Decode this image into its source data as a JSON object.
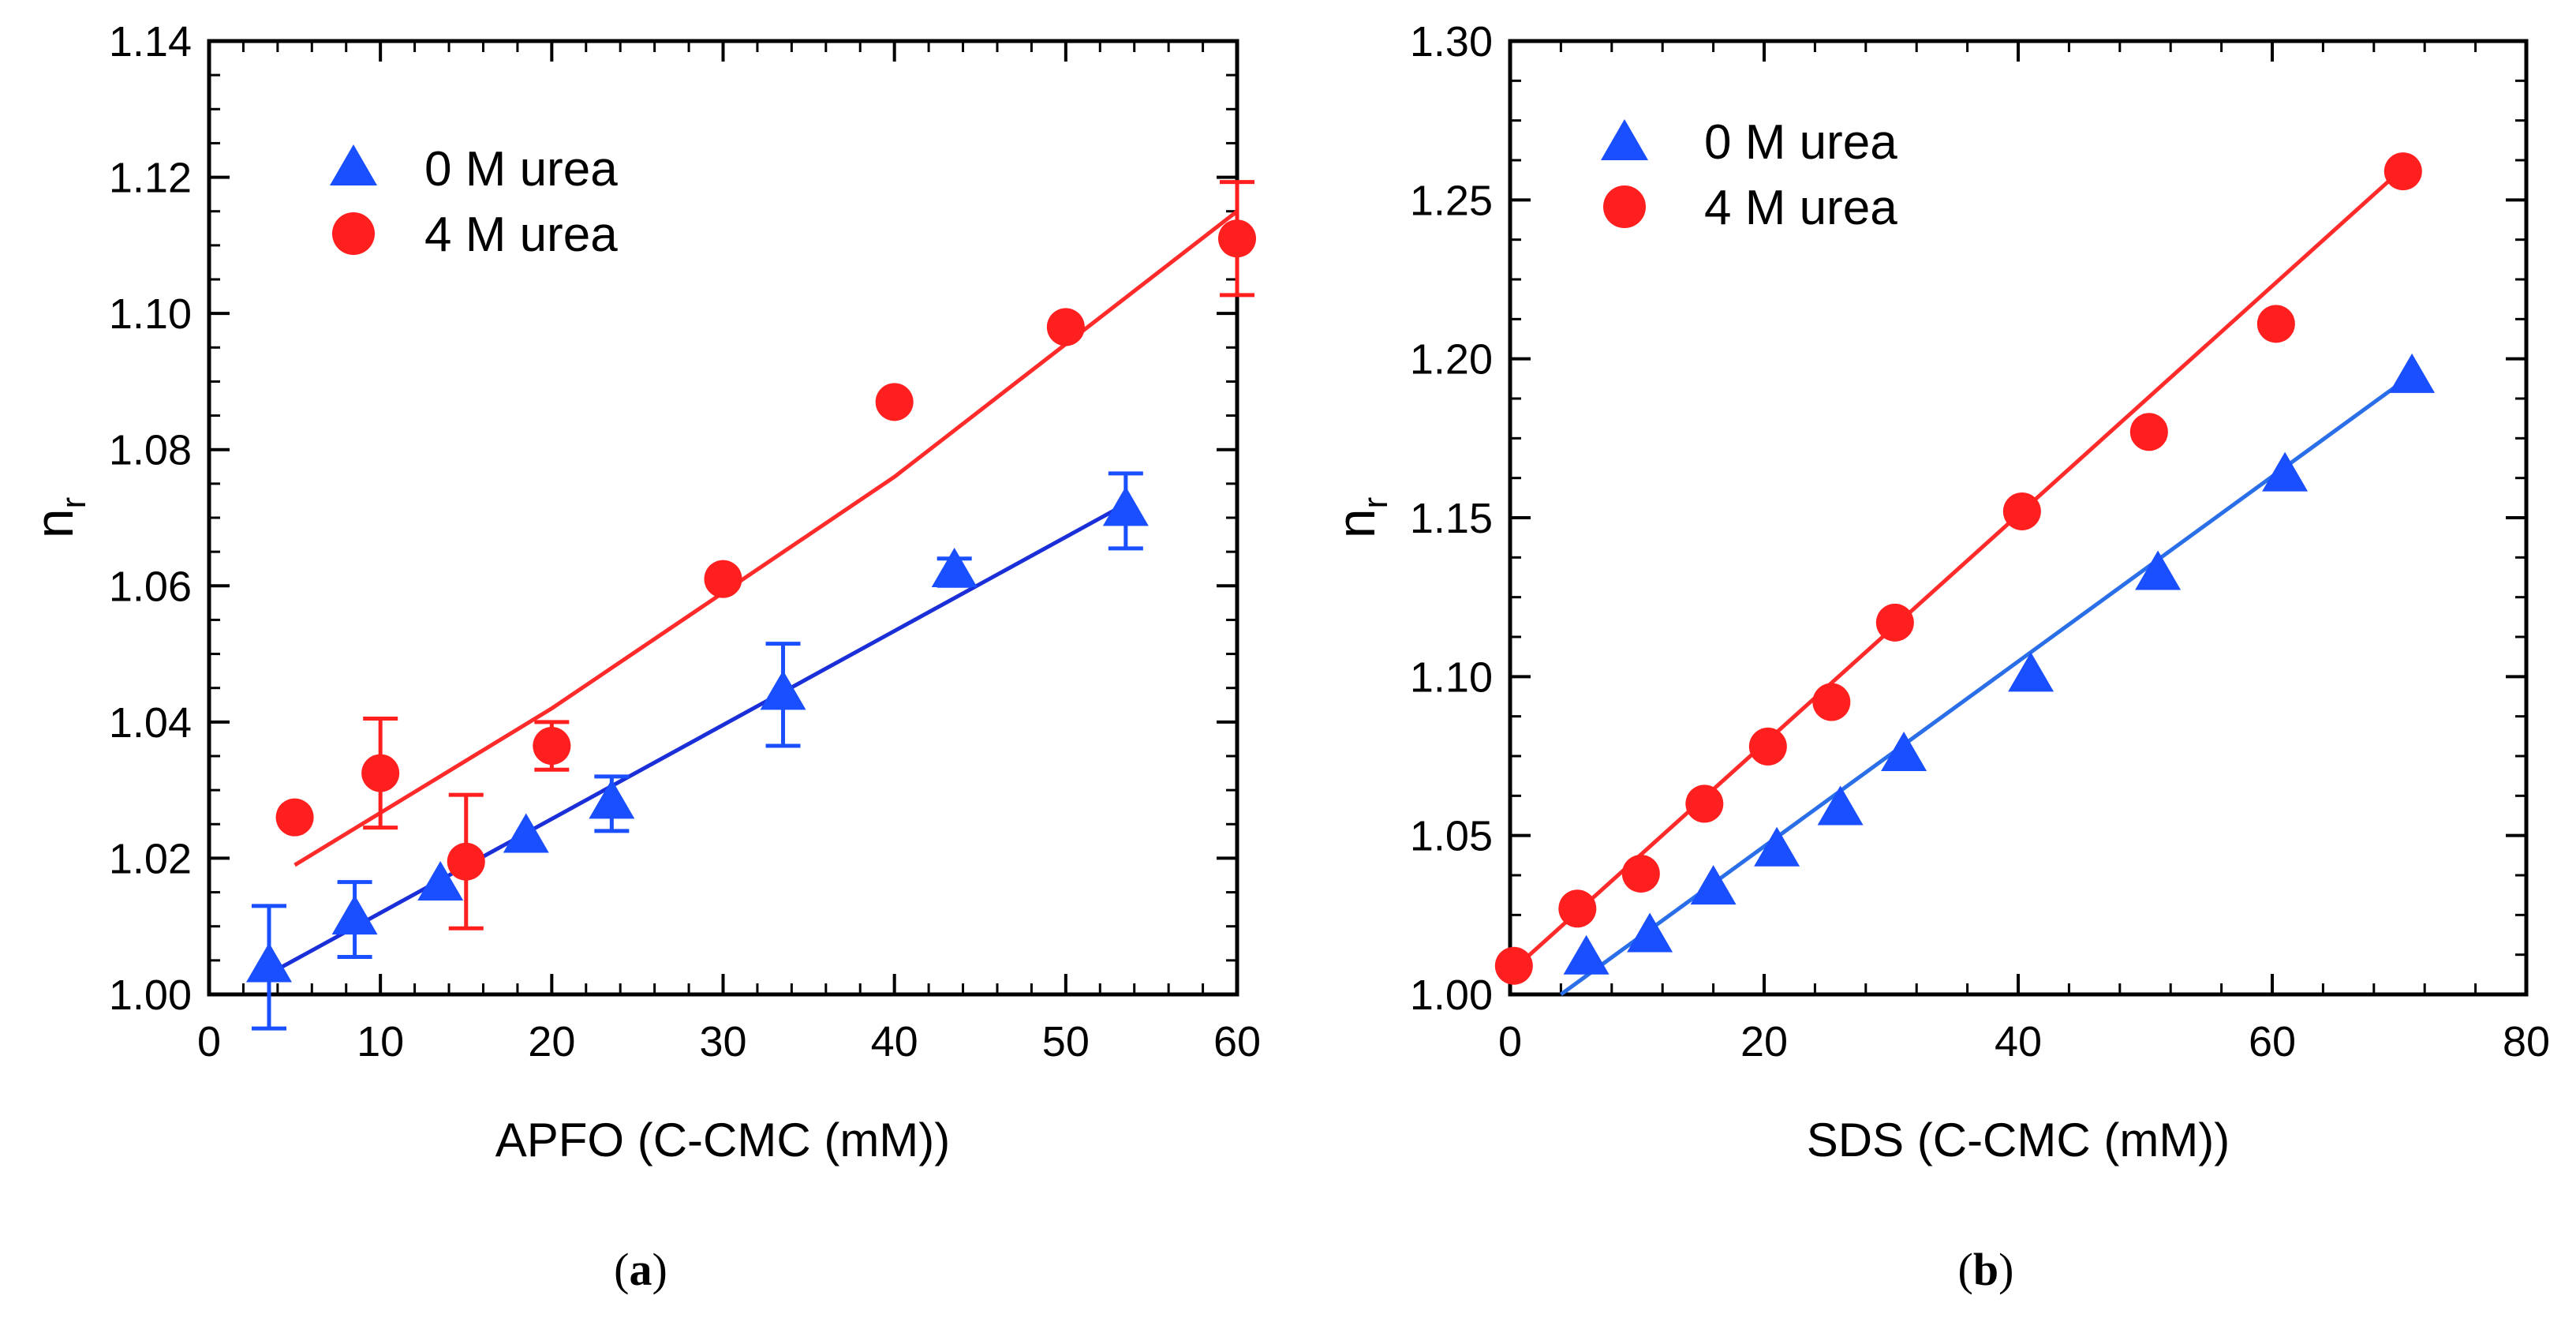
{
  "chart_data": [
    {
      "type": "scatter",
      "panel_label": "a",
      "xlabel": "APFO (C-CMC (mM))",
      "ylabel_main": "n",
      "ylabel_sub": "r",
      "xlim": [
        0,
        60
      ],
      "ylim": [
        1.0,
        1.14
      ],
      "xticks": [
        0,
        10,
        20,
        30,
        40,
        50,
        60
      ],
      "xtick_labels": [
        "0",
        "10",
        "20",
        "30",
        "40",
        "50",
        "60"
      ],
      "yticks": [
        1.0,
        1.02,
        1.04,
        1.06,
        1.08,
        1.1,
        1.12,
        1.14
      ],
      "ytick_labels": [
        "1.00",
        "1.02",
        "1.04",
        "1.06",
        "1.08",
        "1.10",
        "1.12",
        "1.14"
      ],
      "legend_position": "top-left",
      "series": [
        {
          "name": "0 M urea",
          "marker": "triangle",
          "color": "#1a4fff",
          "fit_color": "#1a2fd8",
          "x": [
            3.5,
            8.5,
            13.5,
            18.5,
            23.5,
            33.5,
            43.5,
            53.5
          ],
          "y": [
            1.004,
            1.011,
            1.016,
            1.023,
            1.028,
            1.044,
            1.062,
            1.071
          ],
          "err": [
            0.009,
            0.0055,
            0,
            0,
            0.004,
            0.0075,
            0.002,
            0.0055
          ],
          "fit_x": [
            3.5,
            53.5
          ],
          "fit_y": [
            1.003,
            1.072
          ]
        },
        {
          "name": "4 M urea",
          "marker": "circle",
          "color": "#ff1f1f",
          "fit_color": "#ff2a2a",
          "x": [
            5,
            10,
            15,
            20,
            30,
            40,
            50,
            60
          ],
          "y": [
            1.026,
            1.0325,
            1.0195,
            1.0365,
            1.061,
            1.087,
            1.098,
            1.111
          ],
          "err": [
            0,
            0.008,
            0.0098,
            0.0035,
            0,
            0,
            0,
            0.0083
          ],
          "fit_x": [
            5,
            20,
            40,
            60
          ],
          "fit_y": [
            1.019,
            1.042,
            1.076,
            1.115
          ]
        }
      ]
    },
    {
      "type": "scatter",
      "panel_label": "b",
      "xlabel": "SDS (C-CMC (mM))",
      "ylabel_main": "n",
      "ylabel_sub": "r",
      "xlim": [
        0,
        80
      ],
      "ylim": [
        1.0,
        1.3
      ],
      "xticks": [
        0,
        20,
        40,
        60,
        80
      ],
      "xtick_labels": [
        "0",
        "20",
        "40",
        "60",
        "80"
      ],
      "yticks": [
        1.0,
        1.05,
        1.1,
        1.15,
        1.2,
        1.25,
        1.3
      ],
      "ytick_labels": [
        "1.00",
        "1.05",
        "1.10",
        "1.15",
        "1.20",
        "1.25",
        "1.30"
      ],
      "legend_position": "top-left",
      "series": [
        {
          "name": "0 M urea",
          "marker": "triangle",
          "color": "#1a4fff",
          "fit_color": "#2a6ee8",
          "x": [
            6,
            11,
            16,
            21,
            26,
            31,
            41,
            51,
            61,
            71
          ],
          "y": [
            1.011,
            1.018,
            1.033,
            1.045,
            1.058,
            1.075,
            1.1,
            1.132,
            1.163,
            1.194
          ],
          "err": [
            0,
            0,
            0,
            0,
            0,
            0,
            0,
            0,
            0,
            0
          ],
          "fit_x": [
            4,
            71
          ],
          "fit_y": [
            1.0,
            1.195
          ]
        },
        {
          "name": "4 M urea",
          "marker": "circle",
          "color": "#ff1f1f",
          "fit_color": "#ff2a2a",
          "x": [
            0.3,
            5.3,
            10.3,
            15.3,
            20.3,
            25.3,
            30.3,
            40.3,
            50.3,
            60.3,
            70.3
          ],
          "y": [
            1.009,
            1.027,
            1.038,
            1.06,
            1.078,
            1.092,
            1.117,
            1.152,
            1.177,
            1.211,
            1.259
          ],
          "err": [
            0,
            0,
            0,
            0,
            0,
            0,
            0,
            0,
            0.002,
            0.002,
            0
          ],
          "fit_x": [
            0.3,
            70.3
          ],
          "fit_y": [
            1.008,
            1.26
          ]
        }
      ]
    }
  ]
}
